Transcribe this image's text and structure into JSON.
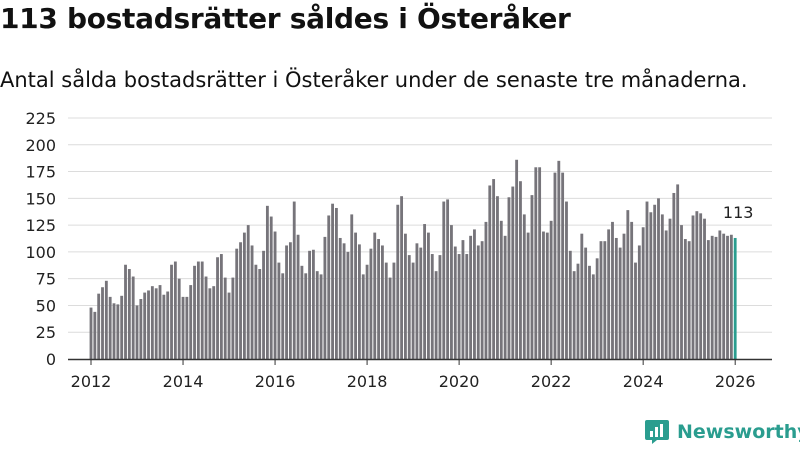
{
  "title": "113 bostadsrätter såldes i Österåker",
  "subtitle": "Antal sålda bostadsrätter i Österåker under de senaste tre månaderna.",
  "logo_text": "Newsworthy",
  "colors": {
    "bar": "#76747a",
    "highlight": "#2a9d8f",
    "grid": "#dcdcdc",
    "axis": "#333333"
  },
  "chart_data": {
    "type": "bar",
    "title": "113 bostadsrätter såldes i Österåker",
    "xlabel": "",
    "ylabel": "",
    "x_range": [
      2011.5,
      2026.8
    ],
    "ylim": [
      0,
      225
    ],
    "yticks": [
      0,
      25,
      50,
      75,
      100,
      125,
      150,
      175,
      200,
      225
    ],
    "xticks": [
      2012,
      2014,
      2016,
      2018,
      2020,
      2022,
      2024,
      2026
    ],
    "grid": true,
    "start": {
      "year": 2012,
      "month": 1
    },
    "values": [
      48,
      44,
      61,
      67,
      73,
      58,
      52,
      51,
      59,
      88,
      84,
      77,
      50,
      56,
      62,
      64,
      68,
      66,
      69,
      60,
      63,
      88,
      91,
      75,
      58,
      58,
      69,
      87,
      91,
      91,
      77,
      66,
      68,
      95,
      98,
      76,
      62,
      76,
      103,
      109,
      118,
      125,
      106,
      88,
      84,
      101,
      143,
      133,
      119,
      90,
      80,
      106,
      109,
      147,
      116,
      87,
      80,
      101,
      102,
      82,
      79,
      114,
      134,
      145,
      141,
      113,
      108,
      100,
      135,
      118,
      107,
      79,
      88,
      103,
      118,
      112,
      106,
      90,
      76,
      90,
      144,
      152,
      117,
      97,
      90,
      108,
      104,
      126,
      118,
      98,
      82,
      97,
      147,
      149,
      125,
      105,
      98,
      111,
      98,
      115,
      121,
      106,
      110,
      128,
      162,
      168,
      152,
      129,
      115,
      151,
      161,
      186,
      166,
      135,
      118,
      153,
      179,
      179,
      119,
      118,
      129,
      174,
      185,
      174,
      147,
      101,
      82,
      89,
      117,
      104,
      87,
      79,
      94,
      110,
      110,
      121,
      128,
      113,
      104,
      117,
      139,
      128,
      90,
      106,
      123,
      147,
      137,
      144,
      150,
      135,
      120,
      131,
      155,
      163,
      125,
      112,
      110,
      134,
      138,
      136,
      131,
      111,
      115,
      114,
      120,
      117,
      115,
      116,
      113
    ],
    "highlight_last": true,
    "annotation": "113"
  }
}
